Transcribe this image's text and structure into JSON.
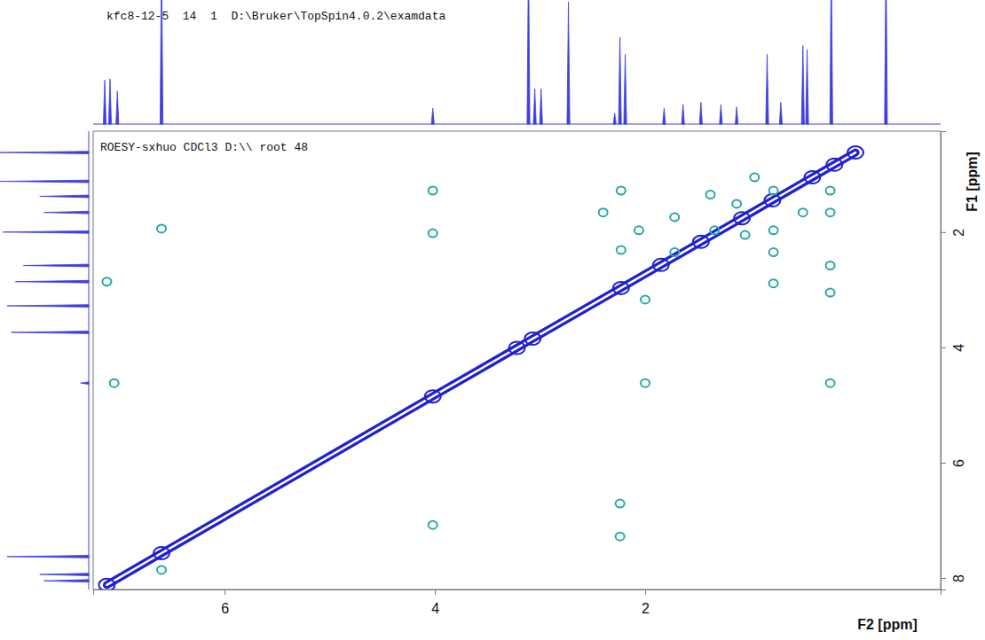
{
  "chart_data": {
    "type": "contour",
    "title": "kfc8-12-5  14  1  D:\\Bruker\\TopSpin4.0.2\\examdata",
    "subtitle": "ROESY-sxhuo CDCl3 D:\\\\ root 48",
    "x_label": "F2 [ppm]",
    "y_label": "F1 [ppm]",
    "xlim": [
      7.25,
      -0.81
    ],
    "ylim": [
      0.25,
      8.2
    ],
    "xticks": [
      6,
      4,
      2
    ],
    "yticks": [
      2,
      4,
      6,
      8
    ],
    "diagonal": {
      "color": "#2020d0",
      "x": [
        7.12,
        6.6,
        4.02,
        3.22,
        3.07,
        2.23,
        1.85,
        1.47,
        1.08,
        0.79,
        0.41,
        0.2,
        0.0
      ],
      "y": [
        8.12,
        7.57,
        4.85,
        4.01,
        3.85,
        2.97,
        2.57,
        2.17,
        1.76,
        1.45,
        1.05,
        0.83,
        0.62
      ]
    },
    "cross_peaks": {
      "color": "#2aa7a3",
      "x": [
        4.02,
        4.02,
        6.6,
        7.12,
        7.05,
        2.0,
        0.24,
        4.02,
        2.24,
        2.24,
        6.6,
        2.4,
        2.23,
        2.23,
        2.06,
        2.0,
        1.72,
        1.72,
        1.38,
        1.13,
        0.96,
        0.78,
        0.78,
        0.78,
        0.78,
        0.5,
        0.24,
        0.24,
        0.24,
        0.24,
        1.34,
        1.05
      ],
      "y": [
        1.28,
        2.02,
        1.94,
        2.86,
        4.62,
        4.62,
        4.62,
        7.08,
        6.71,
        7.28,
        7.86,
        1.66,
        1.28,
        2.31,
        1.97,
        3.17,
        1.74,
        2.35,
        1.35,
        1.51,
        1.05,
        1.28,
        1.97,
        2.35,
        2.89,
        1.66,
        1.28,
        1.66,
        2.58,
        3.05,
        1.97,
        2.05
      ]
    },
    "f2_projection": {
      "color": "#3f3fe0",
      "ylim": [
        0,
        100
      ],
      "x": [
        7.14,
        7.09,
        7.02,
        6.6,
        4.02,
        3.11,
        3.05,
        2.99,
        2.73,
        2.29,
        2.24,
        2.19,
        1.82,
        1.64,
        1.47,
        1.28,
        1.13,
        0.84,
        0.71,
        0.5,
        0.46,
        0.23,
        -0.29
      ],
      "values": [
        36,
        37,
        27,
        143,
        13,
        143,
        29,
        29,
        100,
        9,
        71,
        57,
        13,
        16,
        18,
        16,
        14,
        57,
        18,
        64,
        61,
        143,
        143
      ]
    },
    "f1_projection": {
      "color": "#3f3fe0",
      "xlim": [
        0,
        100
      ],
      "y": [
        0.62,
        1.12,
        1.38,
        1.66,
        2.0,
        2.58,
        2.86,
        3.28,
        3.74,
        4.62,
        7.63,
        7.94,
        8.05
      ],
      "values": [
        110,
        110,
        60,
        55,
        105,
        80,
        90,
        100,
        95,
        10,
        100,
        60,
        55
      ]
    }
  }
}
